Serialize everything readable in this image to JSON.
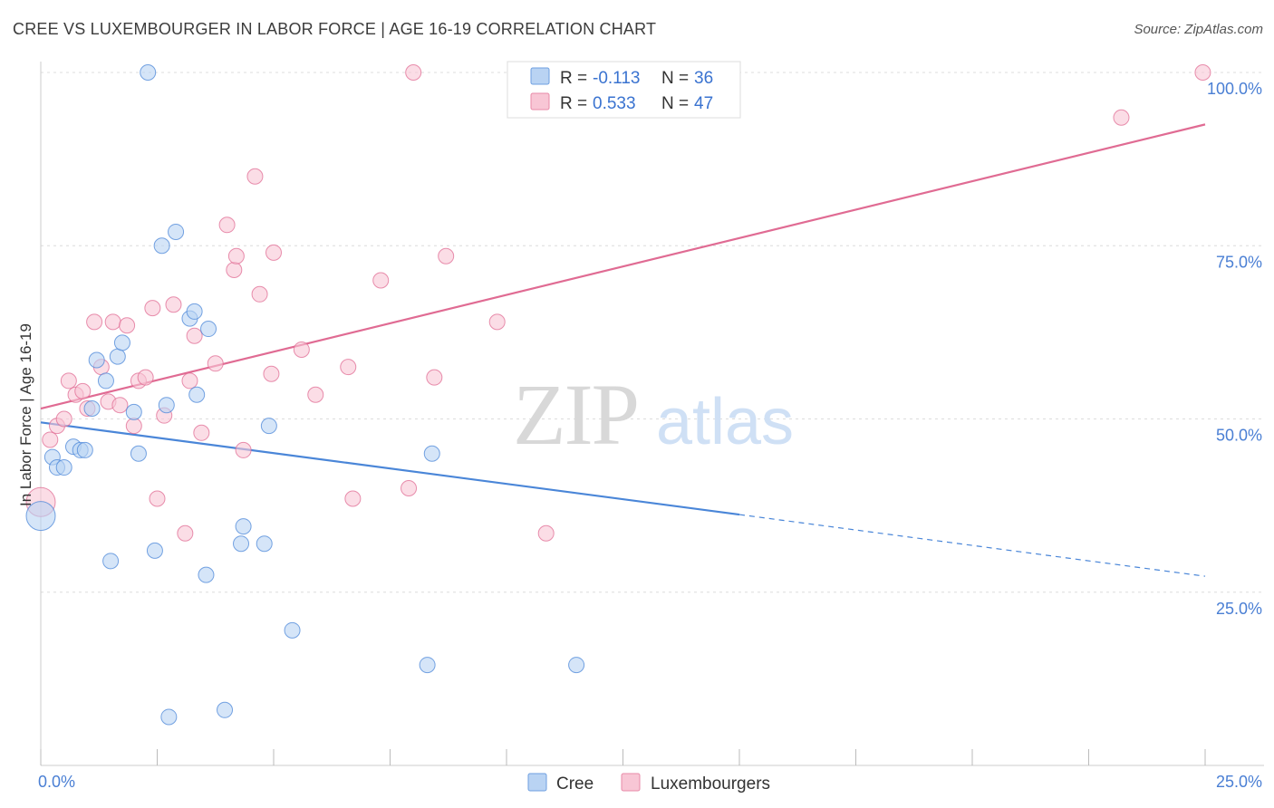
{
  "title": "CREE VS LUXEMBOURGER IN LABOR FORCE | AGE 16-19 CORRELATION CHART",
  "source": "Source: ZipAtlas.com",
  "watermark": {
    "zip": "ZIP",
    "atlas": "atlas"
  },
  "chart_data": {
    "type": "scatter",
    "ylabel": "In Labor Force | Age 16-19",
    "xlim": [
      0,
      25
    ],
    "ylim": [
      0,
      100
    ],
    "x_ticks": [
      {
        "value": 0,
        "label": "0.0%"
      },
      {
        "value": 25,
        "label": "25.0%"
      }
    ],
    "x_minor_ticks": [
      0,
      2.5,
      5,
      7.5,
      10,
      12.5,
      15,
      17.5,
      20,
      22.5,
      25
    ],
    "y_ticks": [
      {
        "value": 25,
        "label": "25.0%"
      },
      {
        "value": 50,
        "label": "50.0%"
      },
      {
        "value": 75,
        "label": "75.0%"
      },
      {
        "value": 100,
        "label": "100.0%"
      }
    ],
    "grid": true,
    "legend": {
      "placement": "top-center",
      "rows": [
        {
          "r_label": "R =",
          "r_value": "-0.113",
          "n_label": "N =",
          "n_value": "36"
        },
        {
          "r_label": "R =",
          "r_value": "0.533",
          "n_label": "N =",
          "n_value": "47"
        }
      ]
    },
    "series": [
      {
        "name": "Cree",
        "color": "#4a86d8",
        "fill": "#b9d3f3",
        "trend": {
          "x0": 0,
          "y0": 49.5,
          "x1": 15,
          "y1": 36.2,
          "dash_to_x": 25,
          "dash_to_y": 27.3
        },
        "points": [
          {
            "x": 0.0,
            "y": 36.0,
            "big": true
          },
          {
            "x": 0.25,
            "y": 44.5
          },
          {
            "x": 0.35,
            "y": 43.0
          },
          {
            "x": 0.5,
            "y": 43.0
          },
          {
            "x": 0.7,
            "y": 46.0
          },
          {
            "x": 0.85,
            "y": 45.5
          },
          {
            "x": 0.95,
            "y": 45.5
          },
          {
            "x": 1.1,
            "y": 51.5
          },
          {
            "x": 1.2,
            "y": 58.5
          },
          {
            "x": 1.4,
            "y": 55.5
          },
          {
            "x": 1.65,
            "y": 59.0
          },
          {
            "x": 1.75,
            "y": 61.0
          },
          {
            "x": 2.0,
            "y": 51.0
          },
          {
            "x": 2.1,
            "y": 45.0
          },
          {
            "x": 2.3,
            "y": 100.0
          },
          {
            "x": 2.6,
            "y": 75.0
          },
          {
            "x": 2.7,
            "y": 52.0
          },
          {
            "x": 2.9,
            "y": 77.0
          },
          {
            "x": 3.2,
            "y": 64.5
          },
          {
            "x": 3.3,
            "y": 65.5
          },
          {
            "x": 3.35,
            "y": 53.5
          },
          {
            "x": 3.6,
            "y": 63.0
          },
          {
            "x": 4.35,
            "y": 34.5
          },
          {
            "x": 4.9,
            "y": 49.0
          },
          {
            "x": 4.8,
            "y": 32.0
          },
          {
            "x": 4.3,
            "y": 32.0
          },
          {
            "x": 1.5,
            "y": 29.5
          },
          {
            "x": 2.45,
            "y": 31.0
          },
          {
            "x": 3.55,
            "y": 27.5
          },
          {
            "x": 5.4,
            "y": 19.5
          },
          {
            "x": 8.3,
            "y": 14.5
          },
          {
            "x": 11.5,
            "y": 14.5
          },
          {
            "x": 2.75,
            "y": 7.0
          },
          {
            "x": 3.95,
            "y": 8.0
          },
          {
            "x": 8.4,
            "y": 45.0
          },
          {
            "x": 10.7,
            "y": 100.0
          }
        ]
      },
      {
        "name": "Luxembourgers",
        "color": "#e06b93",
        "fill": "#f8c6d5",
        "trend": {
          "x0": 0,
          "y0": 51.5,
          "x1": 25,
          "y1": 92.5
        },
        "points": [
          {
            "x": 0.0,
            "y": 38.0,
            "big": true
          },
          {
            "x": 0.2,
            "y": 47.0
          },
          {
            "x": 0.35,
            "y": 49.0
          },
          {
            "x": 0.5,
            "y": 50.0
          },
          {
            "x": 0.6,
            "y": 55.5
          },
          {
            "x": 0.75,
            "y": 53.5
          },
          {
            "x": 0.9,
            "y": 54.0
          },
          {
            "x": 1.0,
            "y": 51.5
          },
          {
            "x": 1.15,
            "y": 64.0
          },
          {
            "x": 1.3,
            "y": 57.5
          },
          {
            "x": 1.45,
            "y": 52.5
          },
          {
            "x": 1.55,
            "y": 64.0
          },
          {
            "x": 1.7,
            "y": 52.0
          },
          {
            "x": 1.85,
            "y": 63.5
          },
          {
            "x": 2.0,
            "y": 49.0
          },
          {
            "x": 2.1,
            "y": 55.5
          },
          {
            "x": 2.25,
            "y": 56.0
          },
          {
            "x": 2.4,
            "y": 66.0
          },
          {
            "x": 2.5,
            "y": 38.5
          },
          {
            "x": 2.65,
            "y": 50.5
          },
          {
            "x": 2.85,
            "y": 66.5
          },
          {
            "x": 3.1,
            "y": 33.5
          },
          {
            "x": 3.2,
            "y": 55.5
          },
          {
            "x": 3.3,
            "y": 62.0
          },
          {
            "x": 3.45,
            "y": 48.0
          },
          {
            "x": 3.75,
            "y": 58.0
          },
          {
            "x": 4.0,
            "y": 78.0
          },
          {
            "x": 4.15,
            "y": 71.5
          },
          {
            "x": 4.2,
            "y": 73.5
          },
          {
            "x": 4.35,
            "y": 45.5
          },
          {
            "x": 4.6,
            "y": 85.0
          },
          {
            "x": 4.7,
            "y": 68.0
          },
          {
            "x": 4.95,
            "y": 56.5
          },
          {
            "x": 5.0,
            "y": 74.0
          },
          {
            "x": 5.6,
            "y": 60.0
          },
          {
            "x": 5.9,
            "y": 53.5
          },
          {
            "x": 6.6,
            "y": 57.5
          },
          {
            "x": 6.7,
            "y": 38.5
          },
          {
            "x": 7.3,
            "y": 70.0
          },
          {
            "x": 7.9,
            "y": 40.0
          },
          {
            "x": 8.0,
            "y": 100.0
          },
          {
            "x": 8.45,
            "y": 56.0
          },
          {
            "x": 8.7,
            "y": 73.5
          },
          {
            "x": 9.8,
            "y": 64.0
          },
          {
            "x": 10.85,
            "y": 33.5
          },
          {
            "x": 23.2,
            "y": 93.5
          },
          {
            "x": 24.95,
            "y": 100.0
          }
        ]
      }
    ]
  }
}
